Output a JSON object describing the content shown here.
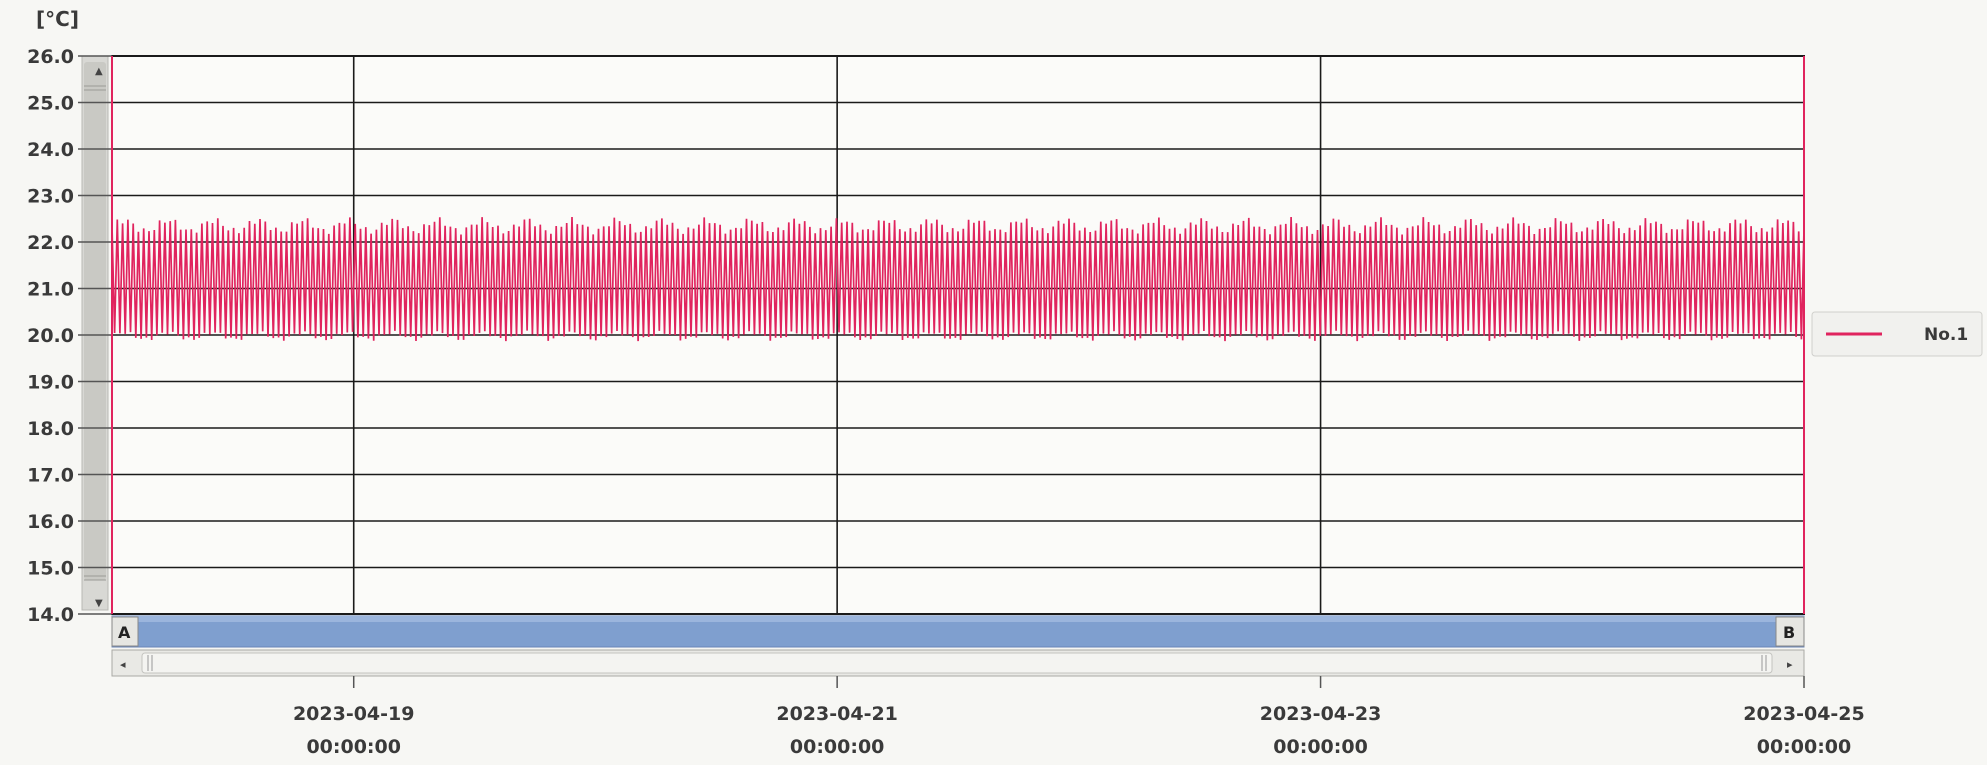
{
  "chart_data": {
    "type": "line",
    "y_unit": "[°C]",
    "ylim": [
      14.0,
      26.0
    ],
    "y_ticks": [
      "14.0",
      "15.0",
      "16.0",
      "17.0",
      "18.0",
      "19.0",
      "20.0",
      "21.0",
      "22.0",
      "23.0",
      "24.0",
      "25.0",
      "26.0"
    ],
    "x_range": [
      "2023-04-18 00:00:00",
      "2023-04-25 00:00:00"
    ],
    "x_ticks": [
      {
        "date": "2023-04-19",
        "time": "00:00:00"
      },
      {
        "date": "2023-04-21",
        "time": "00:00:00"
      },
      {
        "date": "2023-04-23",
        "time": "00:00:00"
      },
      {
        "date": "2023-04-25",
        "time": "00:00:00"
      }
    ],
    "grid": true,
    "legend_position": "right",
    "series": [
      {
        "name": "No.1",
        "color": "#e0245e",
        "pattern": "periodic oscillation roughly every 30 minutes between about 19.9 and 22.5 °C, mean about 21.0 °C",
        "min": 19.9,
        "max": 22.5
      }
    ]
  },
  "scrollbar": {
    "left_marker": "A",
    "right_marker": "B"
  },
  "colors": {
    "series": "#e0245e",
    "range_bar": "#7f9fcf",
    "grid": "#1a1a1a",
    "background": "#f7f7f4"
  }
}
